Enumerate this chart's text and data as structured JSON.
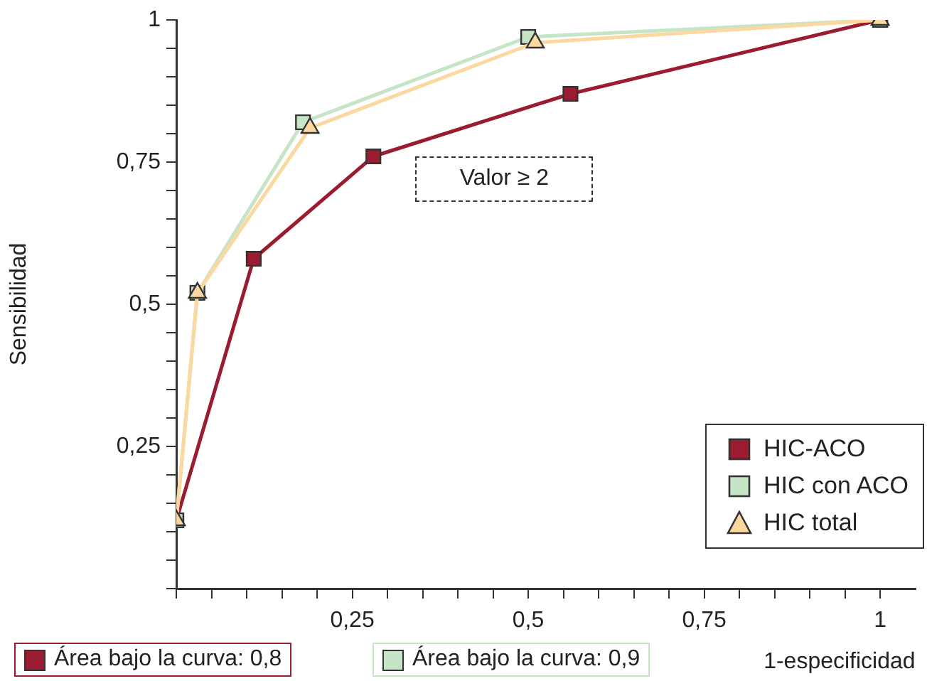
{
  "chart_data": {
    "type": "line",
    "xlabel": "1-especificidad",
    "ylabel": "Sensibilidad",
    "xlim": [
      0,
      1.05
    ],
    "ylim": [
      0,
      1
    ],
    "xticks": [
      {
        "value": 0,
        "label": null
      },
      {
        "value": 0.05,
        "label": null
      },
      {
        "value": 0.1,
        "label": null
      },
      {
        "value": 0.15,
        "label": null
      },
      {
        "value": 0.2,
        "label": null
      },
      {
        "value": 0.25,
        "label": "0,25"
      },
      {
        "value": 0.3,
        "label": null
      },
      {
        "value": 0.35,
        "label": null
      },
      {
        "value": 0.4,
        "label": null
      },
      {
        "value": 0.45,
        "label": null
      },
      {
        "value": 0.5,
        "label": "0,5"
      },
      {
        "value": 0.55,
        "label": null
      },
      {
        "value": 0.6,
        "label": null
      },
      {
        "value": 0.65,
        "label": null
      },
      {
        "value": 0.7,
        "label": null
      },
      {
        "value": 0.75,
        "label": "0,75"
      },
      {
        "value": 0.8,
        "label": null
      },
      {
        "value": 0.85,
        "label": null
      },
      {
        "value": 0.9,
        "label": null
      },
      {
        "value": 0.95,
        "label": null
      },
      1
    ],
    "yticks": [
      {
        "value": 0,
        "label": null
      },
      {
        "value": 0.05,
        "label": null
      },
      {
        "value": 0.1,
        "label": null
      },
      {
        "value": 0.15,
        "label": null
      },
      {
        "value": 0.2,
        "label": null
      },
      {
        "value": 0.25,
        "label": "0,25"
      },
      {
        "value": 0.3,
        "label": null
      },
      {
        "value": 0.35,
        "label": null
      },
      {
        "value": 0.4,
        "label": null
      },
      {
        "value": 0.45,
        "label": null
      },
      {
        "value": 0.5,
        "label": "0,5"
      },
      {
        "value": 0.55,
        "label": null
      },
      {
        "value": 0.6,
        "label": null
      },
      {
        "value": 0.65,
        "label": null
      },
      {
        "value": 0.7,
        "label": null
      },
      {
        "value": 0.75,
        "label": "0,75"
      },
      {
        "value": 0.8,
        "label": null
      },
      {
        "value": 0.85,
        "label": null
      },
      {
        "value": 0.9,
        "label": null
      },
      {
        "value": 0.95,
        "label": null
      },
      1
    ],
    "legend": "bottom right",
    "series": [
      {
        "name": "HIC-ACO",
        "color": "#9b1b30",
        "marker": "square",
        "x": [
          0,
          0.11,
          0.28,
          0.56,
          1
        ],
        "values": [
          0.12,
          0.58,
          0.76,
          0.87,
          1
        ]
      },
      {
        "name": "HIC con ACO",
        "color": "#c6e4c6",
        "marker": "square",
        "x": [
          0,
          0.03,
          0.18,
          0.5,
          1
        ],
        "values": [
          0.12,
          0.52,
          0.82,
          0.97,
          1
        ]
      },
      {
        "name": "HIC total",
        "color": "#fcd8a0",
        "marker": "triangle",
        "x": [
          0,
          0.03,
          0.19,
          0.51,
          1
        ],
        "values": [
          0.12,
          0.52,
          0.81,
          0.96,
          1
        ]
      }
    ],
    "annotations": [
      "Valor ≥ 2",
      "Área bajo la curva: 0,8",
      "Área bajo la curva: 0,9"
    ]
  }
}
